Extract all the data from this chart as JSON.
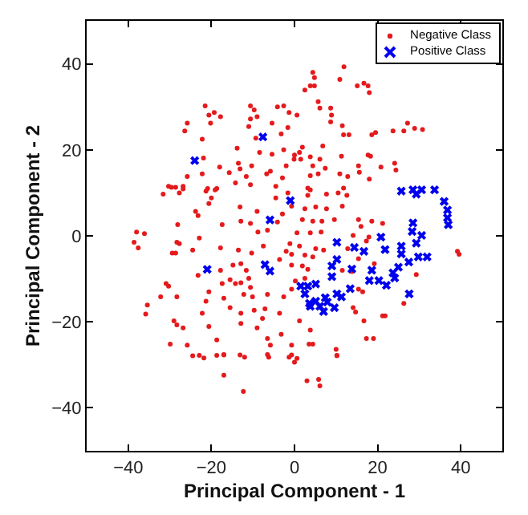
{
  "chart_data": {
    "type": "scatter",
    "xlabel": "Principal Component - 1",
    "ylabel": "Principal Component - 2",
    "xlim": [
      -50,
      50
    ],
    "ylim": [
      -50,
      50
    ],
    "xticks": [
      -40,
      -20,
      0,
      20,
      40
    ],
    "yticks": [
      -40,
      -20,
      0,
      20,
      40
    ],
    "grid": false,
    "legend": "top right",
    "series": [
      {
        "name": "Negative Class",
        "color": "#e41a1c",
        "marker": "circle",
        "x": [
          -21.5,
          -20.6,
          -19.3,
          -17.8,
          -25.8,
          -26.4,
          -20.2,
          -22.2,
          -10.6,
          -9.7,
          -9.0,
          -10.6,
          -4.1,
          -2.6,
          -1.3,
          -5.4,
          -1.6,
          -11,
          -9.3,
          -3.2,
          -13.8,
          -8.4,
          -5.4,
          -2.6,
          0,
          -21.9,
          -18,
          -13.5,
          -13.1,
          -10.3,
          -5.8,
          -2,
          -25.8,
          -22.2,
          -15.7,
          -11.6,
          -6.7,
          -2.9,
          -30.3,
          -28.6,
          -26.8,
          -20.9,
          -18.7,
          -14.2,
          -10.6,
          -4.5,
          4.4,
          4.8,
          11.9,
          10.9,
          3.8,
          2.5,
          4.8,
          15.1,
          16.7,
          17.7,
          18,
          0.6,
          5.7,
          6.1,
          8.7,
          8.9,
          8.7,
          11.5,
          11.8,
          13.1,
          18.6,
          19.5,
          23.7,
          26.3,
          27.2,
          28.9,
          30.8,
          1.9,
          1.2,
          6.8,
          -0.1,
          1.5,
          3.8,
          6.1,
          11.3,
          17.7,
          18.3,
          4.4,
          7.4,
          10.9,
          15.4,
          15.6,
          20.8,
          24.1,
          24.4,
          3.8,
          5.7,
          12.8,
          18,
          3.2,
          11.8,
          -31.6,
          -29.6,
          -27.7,
          -26.8,
          -21.3,
          -19.1,
          -23.8,
          -23.2,
          -20,
          -20.6,
          -28.1,
          -17.4,
          -13.1,
          -12.9,
          -9,
          -10.6,
          -8.8,
          -6.5,
          -4.1,
          -2.9,
          -1.6,
          -4.5,
          -38,
          -36.1,
          -38.6,
          -37.6,
          -28.3,
          -27.7,
          -22.9,
          -24.5,
          -29.4,
          -28.6,
          -17.8,
          -13.5,
          -10.3,
          -7.5,
          -14.8,
          -12.9,
          -11.6,
          -2,
          -3.6,
          -23.2,
          -17.8,
          -17.4,
          -15.5,
          -14.2,
          -12.9,
          -11,
          -10.6,
          -12.2,
          -10.1,
          -6.5,
          -30.9,
          -30.3,
          -32.2,
          -28.3,
          -35.4,
          -35.8,
          -20.6,
          -21.3,
          -22.2,
          -20.6,
          -17,
          -15.5,
          -12.9,
          -9.7,
          -7.1,
          -7.7,
          -3.6,
          -2.6,
          -0.7,
          -29,
          -28.3,
          -26.8,
          -18.7,
          -12.9,
          -9,
          -6.5,
          -5.8,
          -3.2,
          -29.9,
          -25.8,
          -24.5,
          -17,
          -13.1,
          -6.2,
          -0.7,
          3.8,
          3.2,
          7.7,
          10.5,
          12.6,
          -0.7,
          2.5,
          5.1,
          7.7,
          11.5,
          1.9,
          4.4,
          6.6,
          9.6,
          15.4,
          18.6,
          21.2,
          16,
          0.6,
          3.8,
          6.4,
          14.1,
          17.9,
          -1.1,
          1.2,
          5.1,
          7,
          12.8,
          17.3,
          -0.7,
          2.5,
          4.4,
          -0.7,
          1.9,
          3.2,
          15.4,
          19.2,
          11.5,
          13.8,
          29.3,
          39.2,
          39.6,
          0.2,
          2.5,
          15.4,
          16.4,
          26.3,
          14.1,
          14.7,
          21.2,
          21.8,
          1.2,
          16.7,
          3.8,
          3.5,
          4.4,
          17.3,
          19,
          10,
          10.2,
          -0.7,
          0.6,
          -22.9,
          -21.8,
          -18.7,
          -17,
          -12,
          -6.5,
          -1.3,
          0,
          10.2,
          -17,
          -12.3,
          3,
          5.8,
          6.1
        ],
        "values": [
          30.2,
          28.1,
          28.7,
          27.7,
          26.2,
          24.4,
          26.2,
          22.5,
          30.2,
          29.3,
          27.7,
          27.2,
          30,
          30.2,
          28.7,
          26.2,
          25.2,
          25.4,
          22.7,
          23.7,
          20.4,
          19.4,
          19,
          20,
          18.8,
          18.1,
          16,
          16.9,
          15.6,
          16.3,
          15,
          16.3,
          13.8,
          14.4,
          14.7,
          13.8,
          14.4,
          13.5,
          11.5,
          11.3,
          11.5,
          11,
          11,
          12.3,
          11.9,
          11.5,
          38,
          36.8,
          39.3,
          36.4,
          34.9,
          33.9,
          34.9,
          34.9,
          35.5,
          34.9,
          33.3,
          28.1,
          31.2,
          29.7,
          29.7,
          28.1,
          26.5,
          25.6,
          23.5,
          23.5,
          23.5,
          24,
          24.4,
          24.4,
          26.2,
          25,
          24.7,
          20.6,
          19.4,
          20.9,
          17.8,
          17.8,
          18.4,
          17.8,
          18.5,
          18.8,
          18.5,
          16.3,
          15.7,
          14.4,
          16.3,
          14.8,
          16,
          16.9,
          15.3,
          14,
          14.4,
          13.8,
          13.2,
          11.1,
          11.1,
          9.7,
          11.3,
          10,
          10.9,
          10.4,
          10.7,
          5.7,
          4.7,
          8.8,
          7.5,
          2.6,
          2.6,
          6.7,
          3.4,
          5.7,
          2.9,
          0.9,
          1.3,
          3.2,
          5.1,
          10,
          8.8,
          0.9,
          0.5,
          -1.5,
          -2.8,
          -1.5,
          -1.8,
          -0.5,
          -3.3,
          -4,
          -4,
          -2.8,
          -3.3,
          -4,
          -2.4,
          -6.8,
          -6.5,
          -8,
          -3.6,
          -5.5,
          -9.2,
          -8,
          -11.1,
          -10.2,
          -11.1,
          -10.9,
          -9.9,
          -12,
          -13.6,
          -14.2,
          -13.6,
          -11.1,
          -11.7,
          -14.2,
          -14.2,
          -16.1,
          -18.2,
          -13,
          -15.2,
          -18,
          -21.1,
          -14.5,
          -16.7,
          -18,
          -17.3,
          -17,
          -19.2,
          -18,
          -14.2,
          -12.4,
          -19.8,
          -20.7,
          -21.4,
          -24.2,
          -20.4,
          -21.4,
          -23.9,
          -25.4,
          -22.9,
          -25.2,
          -25.4,
          -27.9,
          -27.7,
          -27.7,
          -28.2,
          -25.4,
          10.7,
          9.4,
          9.7,
          10,
          9.4,
          6.9,
          6.3,
          6.7,
          6.3,
          6.9,
          3.8,
          3.4,
          3.4,
          3.8,
          3.8,
          3.4,
          2.9,
          2.2,
          0.7,
          0.7,
          0.9,
          0.1,
          -0.3,
          -1.8,
          -2.4,
          -3,
          -3.3,
          -3,
          -1.2,
          -4.3,
          -4.5,
          -4.9,
          -6.8,
          -7,
          -7.8,
          -5.3,
          -6.5,
          -8,
          -8.3,
          -9,
          -3.6,
          -4.3,
          -10.5,
          -9.9,
          -12.4,
          -13,
          -15.7,
          -16.7,
          -17.7,
          -18.6,
          -18.6,
          -19.8,
          -19.8,
          -21.9,
          -25.2,
          -25.2,
          -23.9,
          -23.9,
          -26.4,
          -27.9,
          -27.7,
          -28.5,
          -27.8,
          -28.4,
          -27.8,
          -27.6,
          -28.2,
          -27.6,
          -28.2,
          -29.4,
          -27.8,
          -32.4,
          -36.2,
          -33.7,
          -33.4,
          -34.9
        ]
      },
      {
        "name": "Positive Class",
        "color": "#0000ee",
        "marker": "cross",
        "x": [
          -24,
          -7.6,
          -5.9,
          -21,
          -7.1,
          -5.9,
          -1,
          25.7,
          28.5,
          30.6,
          33.7,
          29.3,
          36,
          36.8,
          36.8,
          37,
          28.5,
          20.8,
          28.3,
          30.6,
          29.3,
          25.7,
          21.8,
          16.7,
          14.4,
          10.2,
          31.9,
          29.8,
          27.5,
          25,
          25.7,
          10.2,
          9,
          13.8,
          18.6,
          23.7,
          9,
          18,
          20.3,
          22.1,
          24.1,
          1.5,
          3.2,
          5.1,
          13.4,
          10.2,
          11.3,
          27.6,
          2.5,
          7.4,
          7.9,
          5.1,
          3.6,
          3.8,
          6.1,
          9.6,
          7
        ],
        "values": [
          17.5,
          23,
          3.7,
          -7.8,
          -6.7,
          -8.2,
          8.2,
          10.4,
          10.7,
          10.7,
          10.7,
          9.7,
          8,
          6,
          4.2,
          2.6,
          3,
          -0.3,
          1,
          0.1,
          -1.7,
          -2.4,
          -3.2,
          -3.6,
          -2.7,
          -1.5,
          -4.9,
          -4.9,
          -6.1,
          -7.3,
          -4.2,
          -5.5,
          -7,
          -7.7,
          -8,
          -8.6,
          -9.5,
          -10.4,
          -10.4,
          -11.5,
          -9.8,
          -11.7,
          -11.7,
          -11.2,
          -12.3,
          -13.5,
          -14.2,
          -13.5,
          -13.5,
          -14.4,
          -15.4,
          -15.2,
          -15.7,
          -16.4,
          -16.4,
          -16.7,
          -17.6
        ]
      }
    ]
  }
}
